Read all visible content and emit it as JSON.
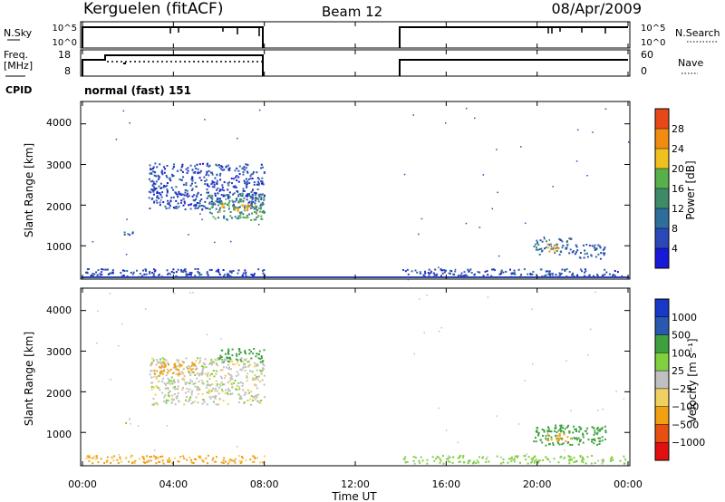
{
  "header": {
    "station": "Kerguelen (fitACF)",
    "beam": "Beam 12",
    "date": "08/Apr/2009"
  },
  "nsky_panel": {
    "left_label": "N.Sky",
    "right_label": "N.Search",
    "ticks_left": [
      "10^5",
      "10^0"
    ],
    "ticks_right": [
      "10^5",
      "10^0"
    ]
  },
  "freq_panel": {
    "left_label_1": "Freq.",
    "left_label_2": "[MHz]",
    "right_label": "Nave",
    "ticks_left": [
      "18",
      "8"
    ],
    "ticks_right": [
      "60",
      "0"
    ]
  },
  "cpid": {
    "label": "CPID",
    "mode": "normal (fast) 151"
  },
  "x_axis": {
    "label": "Time UT",
    "ticks": [
      "00:00",
      "04:00",
      "08:00",
      "12:00",
      "16:00",
      "20:00",
      "00:00"
    ],
    "range_hours": [
      0,
      24
    ]
  },
  "power_panel": {
    "ylabel": "Slant Range [km]",
    "yticks": [
      "4000",
      "3000",
      "2000",
      "1000"
    ],
    "colorbar_label": "Power [dB]",
    "colorbar_ticks": [
      "28",
      "24",
      "20",
      "16",
      "12",
      "8",
      "4"
    ]
  },
  "velocity_panel": {
    "ylabel": "Slant Range [km]",
    "yticks": [
      "4000",
      "3000",
      "2000",
      "1000"
    ],
    "colorbar_label": "Velocity [m s⁻¹]",
    "colorbar_ticks": [
      "1000",
      "500",
      "100",
      "25",
      "−25",
      "−100",
      "−500",
      "−1000"
    ]
  },
  "chart_data": [
    {
      "type": "heatmap",
      "title": "Power [dB]",
      "x_unit": "hours UT",
      "y_unit": "km",
      "xlim": [
        0,
        24
      ],
      "ylim": [
        180,
        4550
      ],
      "scale": [
        0,
        32
      ],
      "regions": [
        {
          "t": [
            2.9,
            8.0
          ],
          "r": [
            1900,
            3050
          ],
          "value": 6
        },
        {
          "t": [
            5.5,
            8.0
          ],
          "r": [
            1650,
            2300
          ],
          "value": 14
        },
        {
          "t": [
            6.0,
            7.8
          ],
          "r": [
            1850,
            2050
          ],
          "value": 22
        },
        {
          "t": [
            1.8,
            2.2
          ],
          "r": [
            1250,
            1400
          ],
          "value": 8
        },
        {
          "t": [
            19.8,
            21.5
          ],
          "r": [
            800,
            1200
          ],
          "value": 10
        },
        {
          "t": [
            20.4,
            21.0
          ],
          "r": [
            880,
            1080
          ],
          "value": 24
        },
        {
          "t": [
            21.5,
            23.0
          ],
          "r": [
            700,
            1050
          ],
          "value": 8
        },
        {
          "t": [
            0.1,
            8.0
          ],
          "r": [
            250,
            450
          ],
          "value": 6
        },
        {
          "t": [
            14.0,
            23.9
          ],
          "r": [
            250,
            450
          ],
          "value": 6
        }
      ]
    },
    {
      "type": "heatmap",
      "title": "Velocity",
      "x_unit": "hours UT",
      "y_unit": "km",
      "xlim": [
        0,
        24
      ],
      "ylim": [
        180,
        4550
      ],
      "scale": [
        -1000,
        1000
      ],
      "regions": [
        {
          "t": [
            2.9,
            8.0
          ],
          "r": [
            1700,
            2850
          ],
          "value": 0
        },
        {
          "t": [
            3.0,
            5.0
          ],
          "r": [
            2450,
            2750
          ],
          "value": -300
        },
        {
          "t": [
            6.0,
            8.0
          ],
          "r": [
            2750,
            3100
          ],
          "value": 200
        },
        {
          "t": [
            1.8,
            2.2
          ],
          "r": [
            1250,
            1400
          ],
          "value": 0
        },
        {
          "t": [
            19.8,
            23.0
          ],
          "r": [
            700,
            1200
          ],
          "value": 200
        },
        {
          "t": [
            20.4,
            21.5
          ],
          "r": [
            800,
            1000
          ],
          "value": -150
        },
        {
          "t": [
            0.1,
            8.0
          ],
          "r": [
            250,
            450
          ],
          "value": -120
        },
        {
          "t": [
            14.0,
            23.9
          ],
          "r": [
            250,
            450
          ],
          "value": 60
        }
      ]
    }
  ]
}
